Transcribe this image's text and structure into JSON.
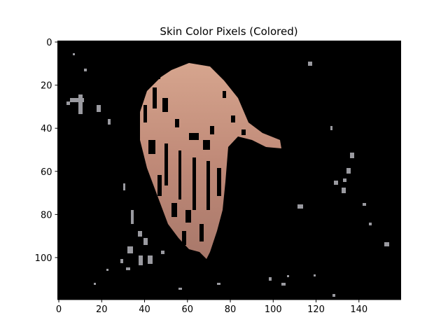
{
  "chart_data": {
    "type": "image",
    "title": "Skin Color Pixels (Colored)",
    "xlim": [
      -0.5,
      159.5
    ],
    "xticks": [
      0,
      20,
      40,
      60,
      80,
      100,
      120,
      140
    ],
    "ylim": [
      119.5,
      -0.5
    ],
    "yticks": [
      0,
      20,
      40,
      60,
      80,
      100
    ]
  }
}
